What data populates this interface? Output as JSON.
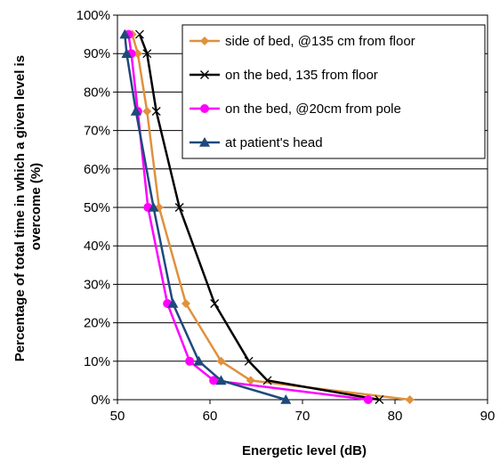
{
  "chart_data": {
    "type": "line",
    "xlabel": "Energetic level (dB)",
    "ylabel": [
      "Percentage of total time in which a given level is",
      "overcome (%)"
    ],
    "xlim": [
      50,
      90
    ],
    "ylim": [
      0,
      100
    ],
    "x_ticks": [
      50,
      60,
      70,
      80,
      90
    ],
    "y_ticks": [
      0,
      10,
      20,
      30,
      40,
      50,
      60,
      70,
      80,
      90,
      100
    ],
    "y_tick_labels": [
      "0%",
      "10%",
      "20%",
      "30%",
      "40%",
      "50%",
      "60%",
      "70%",
      "80%",
      "90%",
      "100%"
    ],
    "grid": "horizontal",
    "legend": "top-right, inside plot",
    "series": [
      {
        "name": "side of bed, @135 cm from floor",
        "color": "#E0913D",
        "marker": "diamond",
        "x": [
          51.6,
          52.2,
          53.2,
          54.5,
          57.4,
          61.2,
          64.4,
          81.6
        ],
        "y": [
          95,
          90,
          75,
          50,
          25,
          10,
          5,
          0
        ]
      },
      {
        "name": "on the bed, 135 from floor",
        "color": "#000000",
        "marker": "x",
        "x": [
          52.4,
          53.2,
          54.2,
          56.7,
          60.5,
          64.2,
          66.2,
          78.3
        ],
        "y": [
          95,
          90,
          75,
          50,
          25,
          10,
          5,
          0
        ]
      },
      {
        "name": "on the bed, @20cm from pole",
        "color": "#FF00FF",
        "marker": "circle",
        "x": [
          51.2,
          51.5,
          52.2,
          53.3,
          55.4,
          57.8,
          60.4,
          77.1
        ],
        "y": [
          95,
          90,
          75,
          50,
          25,
          10,
          5,
          0
        ]
      },
      {
        "name": "at patient's head",
        "color": "#1F497D",
        "marker": "triangle",
        "x": [
          50.8,
          51.0,
          52.0,
          53.9,
          56.0,
          58.8,
          61.2,
          68.2
        ],
        "y": [
          95,
          90,
          75,
          50,
          25,
          10,
          5,
          0
        ]
      }
    ]
  }
}
